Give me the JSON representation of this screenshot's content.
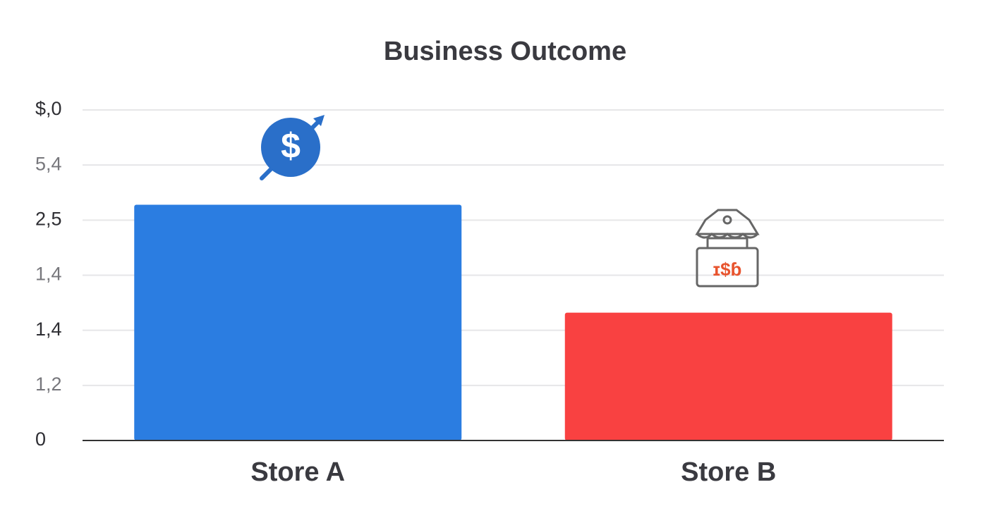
{
  "chart_data": {
    "type": "bar",
    "title": "Business Outcome",
    "categories": [
      "Store A",
      "Store B"
    ],
    "values": [
      4.28,
      2.32
    ],
    "colors": [
      "#2b7de1",
      "#f94141"
    ],
    "ylim": [
      0,
      6
    ],
    "yticks": [
      0,
      {
        "value": 1,
        "label": "1,2"
      },
      {
        "value": 2,
        "label": "1,4"
      },
      {
        "value": 3,
        "label": "1,4"
      },
      {
        "value": 4,
        "label": "2,5"
      },
      {
        "value": 5,
        "label": "5,4"
      },
      {
        "value": 6,
        "label": "$,0"
      }
    ],
    "grid": true
  }
}
